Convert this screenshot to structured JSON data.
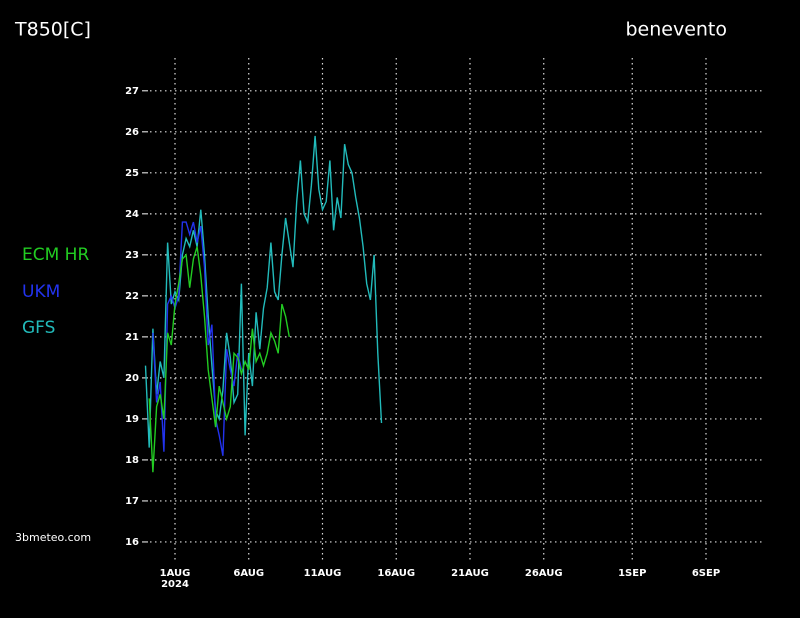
{
  "chart_data": {
    "type": "line",
    "title": "T850[C]",
    "subtitle": "benevento",
    "credit": "3bmeteo.com",
    "year_label": "2024",
    "xlim": [
      -0.83,
      41
    ],
    "ylim": [
      15.56,
      27.8
    ],
    "xticks": [
      {
        "value": 1,
        "label": "1AUG"
      },
      {
        "value": 6,
        "label": "6AUG"
      },
      {
        "value": 11,
        "label": "11AUG"
      },
      {
        "value": 16,
        "label": "16AUG"
      },
      {
        "value": 21,
        "label": "21AUG"
      },
      {
        "value": 26,
        "label": "26AUG"
      },
      {
        "value": 32,
        "label": "1SEP"
      },
      {
        "value": 37,
        "label": "6SEP"
      }
    ],
    "yticks": [
      16,
      17,
      18,
      19,
      20,
      21,
      22,
      23,
      24,
      25,
      26,
      27
    ],
    "grid": true,
    "legend": "left",
    "series": [
      {
        "name": "ECM  HR",
        "color": "#22cc22",
        "x": [
          -0.75,
          -0.5,
          -0.25,
          0,
          0.25,
          0.5,
          0.75,
          1,
          1.25,
          1.5,
          1.75,
          2,
          2.25,
          2.5,
          2.75,
          3,
          3.25,
          3.5,
          3.75,
          4,
          4.25,
          4.5,
          4.75,
          5,
          5.25,
          5.5,
          5.75,
          6,
          6.25,
          6.5,
          6.75,
          7,
          7.25,
          7.5,
          7.75,
          8,
          8.25,
          8.5,
          8.75
        ],
        "values": [
          19.5,
          17.7,
          19.3,
          19.6,
          19.0,
          21.1,
          20.8,
          21.8,
          22.3,
          22.9,
          23.0,
          22.2,
          22.9,
          23.2,
          22.5,
          21.5,
          20.2,
          19.5,
          18.8,
          19.8,
          19.4,
          19.0,
          19.3,
          20.6,
          20.5,
          20.1,
          20.4,
          20.2,
          21.2,
          20.4,
          20.6,
          20.3,
          20.6,
          21.1,
          20.9,
          20.6,
          21.8,
          21.5,
          21.0
        ]
      },
      {
        "name": "UKM",
        "color": "#2233ee",
        "x": [
          -0.5,
          -0.25,
          0,
          0.25,
          0.5,
          0.75,
          1,
          1.25,
          1.5,
          1.75,
          2,
          2.25,
          2.5,
          2.75,
          3,
          3.25,
          3.5,
          3.75,
          4,
          4.25,
          4.5,
          4.75,
          5,
          5.25,
          5.5
        ],
        "values": [
          21.1,
          19.4,
          19.9,
          18.2,
          21.8,
          22.0,
          21.7,
          22.0,
          23.8,
          23.8,
          23.5,
          23.8,
          23.3,
          23.7,
          22.7,
          20.8,
          21.3,
          19.0,
          18.6,
          18.1,
          20.7,
          20.2,
          19.8,
          20.6,
          20.2
        ]
      },
      {
        "name": "GFS",
        "color": "#22bbbb",
        "x": [
          -1,
          -0.75,
          -0.5,
          -0.25,
          0,
          0.25,
          0.5,
          0.75,
          1,
          1.25,
          1.5,
          1.75,
          2,
          2.25,
          2.5,
          2.75,
          3,
          3.25,
          3.5,
          3.75,
          4,
          4.25,
          4.5,
          4.75,
          5,
          5.25,
          5.5,
          5.75,
          6,
          6.25,
          6.5,
          6.75,
          7,
          7.25,
          7.5,
          7.75,
          8,
          8.25,
          8.5,
          8.75,
          9,
          9.25,
          9.5,
          9.75,
          10,
          10.25,
          10.5,
          10.75,
          11,
          11.25,
          11.5,
          11.75,
          12,
          12.25,
          12.5,
          12.75,
          13,
          13.25,
          13.5,
          13.75,
          14,
          14.25,
          14.5,
          14.75,
          15
        ],
        "values": [
          20.3,
          18.3,
          21.2,
          19.6,
          20.4,
          20.0,
          23.3,
          21.8,
          22.1,
          21.9,
          23.0,
          23.4,
          23.2,
          23.6,
          23.2,
          24.1,
          23.0,
          21.5,
          20.3,
          19.2,
          19.0,
          19.7,
          21.1,
          20.5,
          19.4,
          19.6,
          22.3,
          18.6,
          20.6,
          19.8,
          21.6,
          20.7,
          21.7,
          22.2,
          23.3,
          22.1,
          21.9,
          23.0,
          23.9,
          23.3,
          22.7,
          24.3,
          25.3,
          24.0,
          23.8,
          24.7,
          25.9,
          24.6,
          24.1,
          24.3,
          25.3,
          23.6,
          24.4,
          23.9,
          25.7,
          25.2,
          25.0,
          24.4,
          23.9,
          23.2,
          22.3,
          21.9,
          23.0,
          20.6,
          18.9
        ]
      }
    ]
  }
}
